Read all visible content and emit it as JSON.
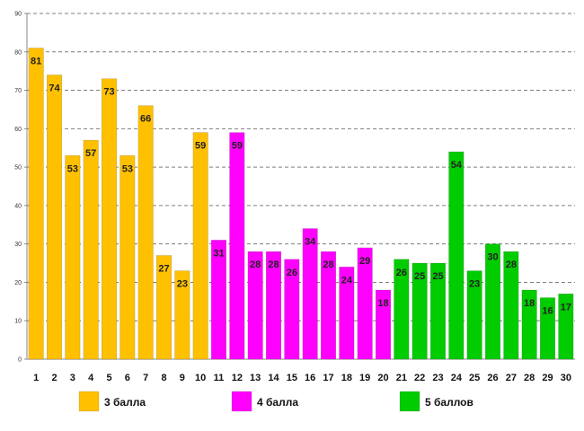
{
  "chart_data": {
    "type": "bar",
    "title": "",
    "xlabel": "",
    "ylabel": "",
    "ylim": [
      0,
      90
    ],
    "ytick_step": 10,
    "grid": true,
    "legend_position": "bottom",
    "categories": [
      "1",
      "2",
      "3",
      "4",
      "5",
      "6",
      "7",
      "8",
      "9",
      "10",
      "11",
      "12",
      "13",
      "14",
      "15",
      "16",
      "17",
      "18",
      "19",
      "20",
      "21",
      "22",
      "23",
      "24",
      "25",
      "26",
      "27",
      "28",
      "29",
      "30"
    ],
    "values": [
      81,
      74,
      53,
      57,
      73,
      53,
      66,
      27,
      23,
      59,
      31,
      59,
      28,
      28,
      26,
      34,
      28,
      24,
      29,
      18,
      26,
      25,
      25,
      54,
      23,
      30,
      28,
      18,
      16,
      17
    ],
    "series": [
      {
        "name": "3 балла",
        "color": "#FFC000",
        "categories": [
          "1",
          "2",
          "3",
          "4",
          "5",
          "6",
          "7",
          "8",
          "9",
          "10"
        ]
      },
      {
        "name": "4 балла",
        "color": "#FF00FF",
        "categories": [
          "11",
          "12",
          "13",
          "14",
          "15",
          "16",
          "17",
          "18",
          "19",
          "20"
        ]
      },
      {
        "name": "5 баллов",
        "color": "#00CC00",
        "categories": [
          "21",
          "22",
          "23",
          "24",
          "25",
          "26",
          "27",
          "28",
          "29",
          "30"
        ]
      }
    ]
  }
}
